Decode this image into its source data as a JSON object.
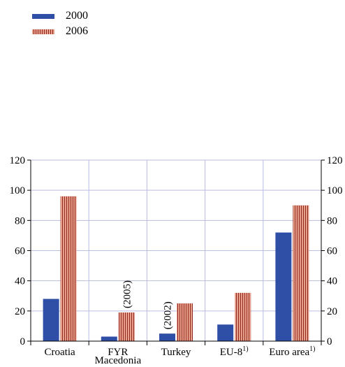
{
  "legend": {
    "items": [
      {
        "label": "2000",
        "color": "#2f4ea5",
        "pattern": "solid"
      },
      {
        "label": "2006",
        "color": "#e8a08a",
        "stripe_color": "#8e2a22",
        "pattern": "vertical-stripes"
      }
    ]
  },
  "chart_data": {
    "type": "bar",
    "categories": [
      "Croatia",
      "FYR Macedonia",
      "Turkey",
      "EU-8",
      "Euro area"
    ],
    "category_superscripts": [
      "",
      "",
      "",
      "1)",
      "1)"
    ],
    "series": [
      {
        "name": "2000",
        "values": [
          28,
          3,
          5,
          11,
          72
        ]
      },
      {
        "name": "2006",
        "values": [
          96,
          19,
          25,
          32,
          90
        ]
      }
    ],
    "annotations": [
      {
        "category": "FYR Macedonia",
        "series": "2006",
        "text": "(2005)"
      },
      {
        "category": "Turkey",
        "series": "2000",
        "text": "(2002)"
      }
    ],
    "ylim": [
      0,
      120
    ],
    "yticks": [
      0,
      20,
      40,
      60,
      80,
      100,
      120
    ],
    "y_axis_sides": [
      "left",
      "right"
    ],
    "grid": true,
    "legend_position": "top-left",
    "colors": {
      "series_2000": "#2f4ea5",
      "series_2006_fill": "#e8a08a",
      "series_2006_stripe": "#8e2a22",
      "grid": "#b9bde0"
    }
  }
}
